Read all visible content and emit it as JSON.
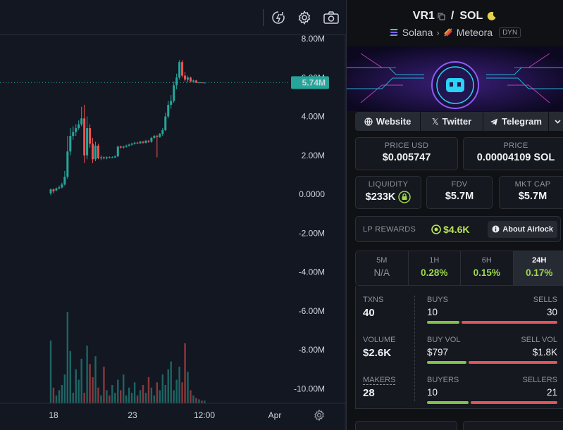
{
  "chart": {
    "price_badge": "5.74M",
    "current_value": 5.74,
    "y_ticks": [
      "8.00M",
      "6.00M",
      "4.00M",
      "2.00M",
      "0.0000",
      "-2.00M",
      "-4.00M",
      "-6.00M",
      "-8.00M",
      "-10.00M"
    ],
    "x_ticks": [
      "18",
      "23",
      "12:00",
      "Apr"
    ],
    "colors": {
      "up": "#26a69a",
      "down": "#ef5350",
      "badge": "#26a69a"
    }
  },
  "chart_data": {
    "type": "candlestick",
    "ylim": [
      -10.75,
      8.0
    ],
    "candles": [
      [
        0.05,
        0.25,
        -0.05,
        0.3
      ],
      [
        0.25,
        0.15,
        0.05,
        0.3
      ],
      [
        0.2,
        0.3,
        0.15,
        0.35
      ],
      [
        0.3,
        0.35,
        0.25,
        0.45
      ],
      [
        0.35,
        0.5,
        0.3,
        0.6
      ],
      [
        0.5,
        0.9,
        0.45,
        1.2
      ],
      [
        0.9,
        2.2,
        0.8,
        3.0
      ],
      [
        2.2,
        3.0,
        2.0,
        3.4
      ],
      [
        3.0,
        3.2,
        2.8,
        3.5
      ],
      [
        3.2,
        3.4,
        3.0,
        3.6
      ],
      [
        3.4,
        3.6,
        3.3,
        3.8
      ],
      [
        3.6,
        3.9,
        3.5,
        4.5
      ],
      [
        3.9,
        2.0,
        1.6,
        4.6
      ],
      [
        2.0,
        3.4,
        1.8,
        4.0
      ],
      [
        3.4,
        2.6,
        2.4,
        3.6
      ],
      [
        2.6,
        1.8,
        1.6,
        2.9
      ],
      [
        1.8,
        2.5,
        1.7,
        2.7
      ],
      [
        2.5,
        1.85,
        1.8,
        2.6
      ],
      [
        1.85,
        1.9,
        1.75,
        2.0
      ],
      [
        1.9,
        1.85,
        1.8,
        1.95
      ],
      [
        1.85,
        1.9,
        1.8,
        1.95
      ],
      [
        1.9,
        1.88,
        1.85,
        1.95
      ],
      [
        1.88,
        1.9,
        1.85,
        1.95
      ],
      [
        1.9,
        1.95,
        1.85,
        2.0
      ],
      [
        1.95,
        2.45,
        1.9,
        2.5
      ],
      [
        2.45,
        2.4,
        2.35,
        2.5
      ],
      [
        2.4,
        2.45,
        2.35,
        2.5
      ],
      [
        2.45,
        2.5,
        2.4,
        2.55
      ],
      [
        2.5,
        2.55,
        2.45,
        2.6
      ],
      [
        2.55,
        2.6,
        2.5,
        2.65
      ],
      [
        2.6,
        2.65,
        2.55,
        2.7
      ],
      [
        2.65,
        2.62,
        2.58,
        2.7
      ],
      [
        2.62,
        2.7,
        2.6,
        2.75
      ],
      [
        2.7,
        2.65,
        2.6,
        2.75
      ],
      [
        2.65,
        2.75,
        2.6,
        2.8
      ],
      [
        2.75,
        2.7,
        2.65,
        2.8
      ],
      [
        2.7,
        2.9,
        2.65,
        2.95
      ],
      [
        2.9,
        3.0,
        2.85,
        3.05
      ],
      [
        3.0,
        2.95,
        1.9,
        3.05
      ],
      [
        2.95,
        3.1,
        2.9,
        3.15
      ],
      [
        3.1,
        3.3,
        3.0,
        3.4
      ],
      [
        3.3,
        4.0,
        3.25,
        4.2
      ],
      [
        4.0,
        4.6,
        3.9,
        4.8
      ],
      [
        4.6,
        4.8,
        4.4,
        5.1
      ],
      [
        4.8,
        5.6,
        4.7,
        5.8
      ],
      [
        5.6,
        6.0,
        5.4,
        6.2
      ],
      [
        6.0,
        6.8,
        5.9,
        6.9
      ],
      [
        6.8,
        6.1,
        6.0,
        6.9
      ],
      [
        6.1,
        5.9,
        5.8,
        6.3
      ],
      [
        5.9,
        6.0,
        5.75,
        6.1
      ],
      [
        6.0,
        5.8,
        5.75,
        6.05
      ],
      [
        5.8,
        5.85,
        5.74,
        5.9
      ],
      [
        5.85,
        5.74,
        5.72,
        5.88
      ],
      [
        5.74,
        5.75,
        5.72,
        5.78
      ],
      [
        5.75,
        5.74,
        5.73,
        5.76
      ],
      [
        5.74,
        5.74,
        5.73,
        5.75
      ]
    ],
    "volume": [
      48,
      12,
      6,
      10,
      14,
      22,
      70,
      40,
      8,
      26,
      18,
      34,
      8,
      44,
      30,
      20,
      36,
      12,
      6,
      28,
      10,
      6,
      14,
      8,
      18,
      10,
      22,
      6,
      12,
      8,
      16,
      6,
      10,
      14,
      8,
      20,
      12,
      6,
      16,
      10,
      22,
      14,
      26,
      32,
      10,
      18,
      28,
      16,
      46,
      24,
      10,
      6,
      4,
      3,
      2,
      2
    ]
  },
  "pair": {
    "base": "VR1",
    "separator": "/",
    "quote": "SOL",
    "chain": "Solana",
    "dex": "Meteora",
    "badge": "DYN"
  },
  "links": [
    {
      "label": "Website",
      "icon": "globe-icon"
    },
    {
      "label": "Twitter",
      "icon": "x-logo-icon"
    },
    {
      "label": "Telegram",
      "icon": "telegram-icon"
    }
  ],
  "price": {
    "usd_label": "PRICE USD",
    "usd_value": "$0.005747",
    "native_label": "PRICE",
    "native_value": "0.00004109 SOL"
  },
  "metrics": {
    "liquidity_label": "LIQUIDITY",
    "liquidity_value": "$233K",
    "fdv_label": "FDV",
    "fdv_value": "$5.7M",
    "mcap_label": "MKT CAP",
    "mcap_value": "$5.7M"
  },
  "lp": {
    "label": "LP REWARDS",
    "value": "$4.6K",
    "button": "About Airlock"
  },
  "timeframes": [
    {
      "name": "5M",
      "value": "N/A",
      "color": "#8d939e"
    },
    {
      "name": "1H",
      "value": "0.28%",
      "color": "#9ed94c"
    },
    {
      "name": "6H",
      "value": "0.15%",
      "color": "#9ed94c"
    },
    {
      "name": "24H",
      "value": "0.17%",
      "color": "#9ed94c"
    }
  ],
  "stats": {
    "txns_label": "TXNS",
    "txns_value": "40",
    "buys_label": "BUYS",
    "buys_value": "10",
    "sells_label": "SELLS",
    "sells_value": "30",
    "buys_share": 0.25,
    "volume_label": "VOLUME",
    "volume_value": "$2.6K",
    "buy_vol_label": "BUY VOL",
    "buy_vol_value": "$797",
    "sell_vol_label": "SELL VOL",
    "sell_vol_value": "$1.8K",
    "buy_vol_share": 0.3,
    "makers_label": "MAKERS",
    "makers_value": "28",
    "buyers_label": "BUYERS",
    "buyers_value": "10",
    "sellers_label": "SELLERS",
    "sellers_value": "21",
    "buyers_share": 0.32
  }
}
